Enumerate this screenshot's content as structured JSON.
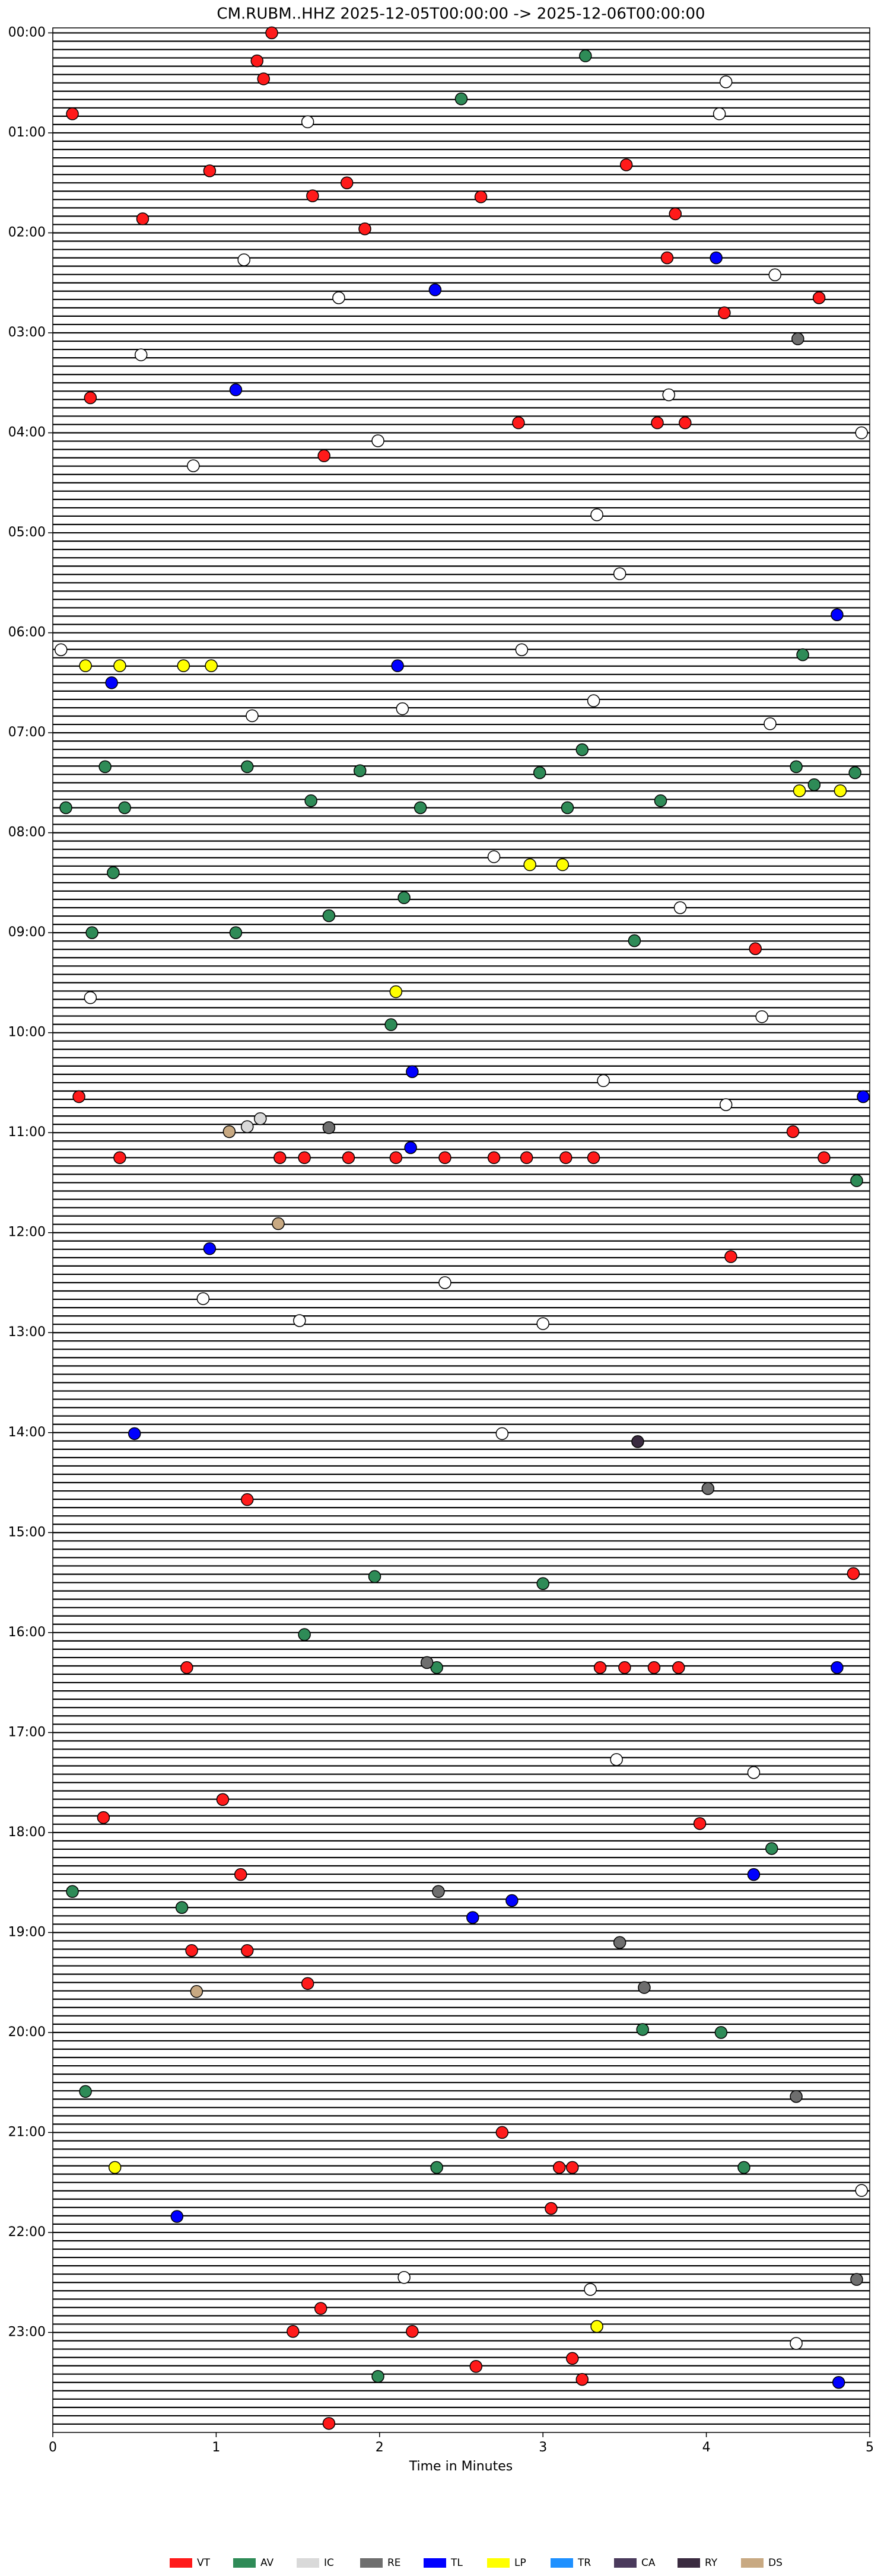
{
  "chart_data": {
    "type": "scatter",
    "title": "CM.RUBM..HHZ  2025-12-05T00:00:00 -> 2025-12-06T00:00:00",
    "x_label": "Time in Minutes",
    "xlim": [
      0,
      5
    ],
    "xticks": [
      0,
      1,
      2,
      3,
      4,
      5
    ],
    "ylim": [
      -0.05,
      24
    ],
    "yticks": [
      {
        "value": 0,
        "label": "00:00"
      },
      {
        "value": 1,
        "label": "01:00"
      },
      {
        "value": 2,
        "label": "02:00"
      },
      {
        "value": 3,
        "label": "03:00"
      },
      {
        "value": 4,
        "label": "04:00"
      },
      {
        "value": 5,
        "label": "05:00"
      },
      {
        "value": 6,
        "label": "06:00"
      },
      {
        "value": 7,
        "label": "07:00"
      },
      {
        "value": 8,
        "label": "08:00"
      },
      {
        "value": 9,
        "label": "09:00"
      },
      {
        "value": 10,
        "label": "10:00"
      },
      {
        "value": 11,
        "label": "11:00"
      },
      {
        "value": 12,
        "label": "12:00"
      },
      {
        "value": 13,
        "label": "13:00"
      },
      {
        "value": 14,
        "label": "14:00"
      },
      {
        "value": 15,
        "label": "15:00"
      },
      {
        "value": 16,
        "label": "16:00"
      },
      {
        "value": 17,
        "label": "17:00"
      },
      {
        "value": 18,
        "label": "18:00"
      },
      {
        "value": 19,
        "label": "19:00"
      },
      {
        "value": 20,
        "label": "20:00"
      },
      {
        "value": 21,
        "label": "21:00"
      },
      {
        "value": 22,
        "label": "22:00"
      },
      {
        "value": 23,
        "label": "23:00"
      }
    ],
    "grid": false,
    "legend": "below",
    "series": [
      {
        "name": "VT",
        "color": "#ff1a1a",
        "x": [
          1.34,
          1.25,
          1.29,
          0.12,
          0.96,
          1.8,
          1.59,
          2.62,
          3.51,
          3.81,
          1.91,
          0.55,
          3.76,
          4.11,
          4.69,
          0.23,
          2.85,
          3.7,
          3.87,
          1.66,
          4.3,
          0.16,
          0.41,
          1.39,
          1.54,
          1.81,
          2.1,
          2.4,
          2.7,
          2.9,
          3.14,
          3.31,
          4.53,
          4.72,
          4.15,
          1.19,
          4.9,
          0.82,
          3.35,
          3.5,
          3.68,
          3.83,
          1.04,
          0.31,
          3.96,
          1.15,
          0.85,
          1.19,
          1.56,
          1.64,
          1.47,
          2.2,
          2.59,
          3.18,
          3.24,
          1.69,
          2.75,
          3.1,
          3.18,
          3.05
        ],
        "y": [
          0.0,
          0.28,
          0.46,
          0.81,
          1.38,
          1.5,
          1.63,
          1.64,
          1.32,
          1.81,
          1.96,
          1.86,
          2.25,
          2.8,
          2.65,
          3.65,
          3.9,
          3.9,
          3.9,
          4.23,
          9.16,
          10.64,
          11.25,
          11.25,
          11.25,
          11.25,
          11.25,
          11.25,
          11.25,
          11.25,
          11.25,
          11.25,
          10.99,
          11.25,
          12.24,
          14.67,
          15.41,
          16.35,
          16.35,
          16.35,
          16.35,
          16.35,
          17.67,
          17.85,
          17.91,
          18.42,
          19.18,
          19.18,
          19.51,
          22.76,
          22.99,
          22.99,
          23.34,
          23.26,
          23.47,
          23.91,
          21.0,
          21.35,
          21.35,
          21.76
        ]
      },
      {
        "name": "AV",
        "color": "#2e8b57",
        "x": [
          3.26,
          2.5,
          0.32,
          1.19,
          1.88,
          2.98,
          3.24,
          4.55,
          4.91,
          0.08,
          0.44,
          1.58,
          2.25,
          3.15,
          3.72,
          4.66,
          4.59,
          0.37,
          2.15,
          1.69,
          1.12,
          0.24,
          3.56,
          2.07,
          4.92,
          1.97,
          2.35,
          3.0,
          1.54,
          0.79,
          0.12,
          4.4,
          3.61,
          4.09,
          0.2,
          2.35,
          1.99,
          4.23
        ],
        "y": [
          0.23,
          0.66,
          7.34,
          7.34,
          7.38,
          7.4,
          7.17,
          7.34,
          7.4,
          7.75,
          7.75,
          7.68,
          7.75,
          7.75,
          7.68,
          7.52,
          6.22,
          8.4,
          8.65,
          8.83,
          9.0,
          9.0,
          9.08,
          9.92,
          11.48,
          15.44,
          16.35,
          15.51,
          16.02,
          18.75,
          18.59,
          18.16,
          19.97,
          20.0,
          20.59,
          21.35,
          23.44,
          21.35
        ]
      },
      {
        "name": "IC",
        "color": "#d9d9d9",
        "x": [
          1.27,
          1.19
        ],
        "y": [
          10.86,
          10.94
        ]
      },
      {
        "name": "RE",
        "color": "#6e6e6e",
        "x": [
          1.69,
          4.56,
          4.55,
          2.36,
          3.47,
          3.62,
          4.01,
          2.29,
          4.92
        ],
        "y": [
          10.95,
          3.06,
          20.64,
          18.59,
          19.1,
          19.55,
          14.56,
          16.3,
          22.47
        ]
      },
      {
        "name": "TL",
        "color": "#0000ff",
        "x": [
          2.34,
          1.12,
          2.11,
          0.36,
          4.06,
          4.8,
          2.2,
          2.19,
          4.96,
          0.96,
          0.5,
          4.29,
          2.57,
          2.81,
          0.76,
          4.8,
          4.81
        ],
        "y": [
          2.57,
          3.57,
          6.33,
          6.5,
          2.25,
          5.82,
          10.39,
          11.15,
          10.64,
          12.16,
          14.01,
          18.42,
          18.85,
          18.68,
          21.84,
          16.35,
          23.5
        ]
      },
      {
        "name": "LP",
        "color": "#ffff00",
        "x": [
          0.2,
          0.41,
          0.8,
          0.97,
          2.92,
          3.12,
          4.57,
          4.82,
          2.1,
          0.38,
          3.33
        ],
        "y": [
          6.33,
          6.33,
          6.33,
          6.33,
          8.32,
          8.32,
          7.58,
          7.58,
          9.59,
          21.35,
          22.94
        ]
      },
      {
        "name": "TR",
        "color": "#1e90ff",
        "x": [],
        "y": []
      },
      {
        "name": "CA",
        "color": "#4a3a5c",
        "x": [],
        "y": []
      },
      {
        "name": "RY",
        "color": "#3a2b40",
        "x": [
          3.58
        ],
        "y": [
          14.09
        ]
      },
      {
        "name": "DS",
        "color": "#c8a982",
        "x": [
          1.08,
          1.38,
          0.88
        ],
        "y": [
          10.99,
          11.91,
          19.59
        ]
      }
    ],
    "unclassified_events": {
      "color": "#ffffff",
      "x": [
        4.12,
        1.56,
        4.08,
        1.17,
        1.75,
        4.42,
        0.54,
        3.77,
        1.99,
        4.95,
        0.86,
        3.33,
        3.47,
        0.05,
        2.87,
        1.22,
        2.14,
        3.31,
        4.39,
        2.7,
        3.84,
        0.23,
        4.34,
        3.37,
        4.12,
        2.4,
        3.0,
        1.51,
        0.92,
        2.75,
        4.29,
        3.45,
        4.95,
        3.29,
        4.55,
        2.15
      ],
      "y": [
        0.49,
        0.89,
        0.81,
        2.27,
        2.65,
        2.42,
        3.22,
        3.62,
        4.08,
        4.0,
        4.33,
        4.82,
        5.41,
        6.17,
        6.17,
        6.83,
        6.76,
        6.68,
        6.91,
        8.24,
        8.75,
        9.65,
        9.84,
        10.48,
        10.72,
        12.5,
        12.91,
        12.88,
        12.66,
        14.01,
        17.4,
        17.27,
        21.58,
        22.57,
        23.11,
        22.45
      ]
    }
  }
}
